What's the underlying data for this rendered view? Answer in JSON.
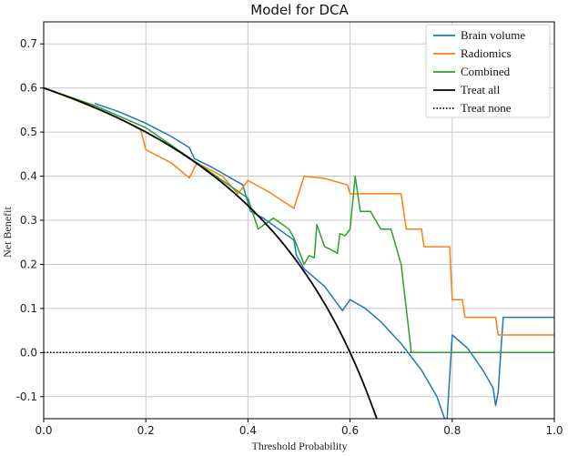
{
  "chart_data": {
    "type": "line",
    "title": "Model for DCA",
    "xlabel": "Threshold Probability",
    "ylabel": "Net Benefit",
    "xlim": [
      0.0,
      1.0
    ],
    "ylim": [
      -0.15,
      0.75
    ],
    "xticks": [
      "0.0",
      "0.2",
      "0.4",
      "0.6",
      "0.8",
      "1.0"
    ],
    "xtick_values": [
      0.0,
      0.2,
      0.4,
      0.6,
      0.8,
      1.0
    ],
    "yticks": [
      "-0.1",
      "0.0",
      "0.1",
      "0.2",
      "0.3",
      "0.4",
      "0.5",
      "0.6",
      "0.7"
    ],
    "ytick_values": [
      -0.1,
      0.0,
      0.1,
      0.2,
      0.3,
      0.4,
      0.5,
      0.6,
      0.7
    ],
    "grid": true,
    "legend_position": "top-right",
    "series": [
      {
        "name": "Brain volume",
        "color": "#1f77b4",
        "style": "solid",
        "x": [
          0.1,
          0.15,
          0.2,
          0.25,
          0.285,
          0.295,
          0.33,
          0.36,
          0.39,
          0.395,
          0.405,
          0.43,
          0.46,
          0.49,
          0.495,
          0.51,
          0.55,
          0.585,
          0.6,
          0.63,
          0.66,
          0.7,
          0.74,
          0.77,
          0.785,
          0.79,
          0.8,
          0.83,
          0.86,
          0.88,
          0.885,
          0.89,
          0.895,
          0.9,
          0.95,
          1.0
        ],
        "y": [
          0.565,
          0.545,
          0.52,
          0.49,
          0.465,
          0.44,
          0.42,
          0.4,
          0.38,
          0.36,
          0.32,
          0.305,
          0.28,
          0.255,
          0.22,
          0.19,
          0.15,
          0.095,
          0.12,
          0.1,
          0.07,
          0.02,
          -0.04,
          -0.1,
          -0.15,
          -0.15,
          0.04,
          0.01,
          -0.04,
          -0.08,
          -0.12,
          -0.09,
          0.0,
          0.08,
          0.08,
          0.08
        ]
      },
      {
        "name": "Radiomics",
        "color": "#ff7f0e",
        "style": "solid",
        "x": [
          0.0,
          0.05,
          0.1,
          0.15,
          0.19,
          0.2,
          0.25,
          0.285,
          0.3,
          0.35,
          0.38,
          0.4,
          0.44,
          0.49,
          0.51,
          0.55,
          0.595,
          0.6,
          0.62,
          0.7,
          0.71,
          0.74,
          0.745,
          0.77,
          0.795,
          0.8,
          0.82,
          0.825,
          0.885,
          0.89,
          1.0
        ],
        "y": [
          0.6,
          0.578,
          0.555,
          0.53,
          0.505,
          0.46,
          0.43,
          0.396,
          0.43,
          0.4,
          0.36,
          0.39,
          0.365,
          0.327,
          0.4,
          0.395,
          0.38,
          0.36,
          0.36,
          0.36,
          0.28,
          0.28,
          0.24,
          0.24,
          0.24,
          0.12,
          0.12,
          0.08,
          0.08,
          0.04,
          0.04
        ]
      },
      {
        "name": "Combined",
        "color": "#2ca02c",
        "style": "solid",
        "x": [
          0.0,
          0.1,
          0.2,
          0.3,
          0.4,
          0.42,
          0.45,
          0.48,
          0.49,
          0.51,
          0.52,
          0.53,
          0.535,
          0.55,
          0.56,
          0.575,
          0.58,
          0.59,
          0.6,
          0.61,
          0.62,
          0.64,
          0.66,
          0.68,
          0.7,
          0.72,
          0.73,
          0.8,
          0.9,
          1.0
        ],
        "y": [
          0.6,
          0.56,
          0.51,
          0.43,
          0.35,
          0.28,
          0.305,
          0.28,
          0.26,
          0.2,
          0.22,
          0.215,
          0.29,
          0.24,
          0.235,
          0.225,
          0.27,
          0.265,
          0.28,
          0.4,
          0.32,
          0.32,
          0.28,
          0.28,
          0.2,
          0.0,
          0.0,
          0.0,
          0.0,
          0.0
        ]
      },
      {
        "name": "Treat all",
        "color": "#000000",
        "style": "solid",
        "prevalence": 0.6,
        "x": [
          0.0,
          0.05,
          0.1,
          0.15,
          0.2,
          0.25,
          0.3,
          0.35,
          0.4,
          0.45,
          0.5,
          0.55,
          0.6,
          0.625,
          0.64
        ],
        "y": [
          0.6,
          0.5789,
          0.5556,
          0.5294,
          0.5,
          0.4667,
          0.4286,
          0.3846,
          0.3333,
          0.2727,
          0.2,
          0.1111,
          0.0,
          -0.0667,
          -0.1111
        ]
      },
      {
        "name": "Treat none",
        "color": "#000000",
        "style": "dotted",
        "x": [
          0.0,
          1.0
        ],
        "y": [
          0.0,
          0.0
        ]
      }
    ]
  }
}
